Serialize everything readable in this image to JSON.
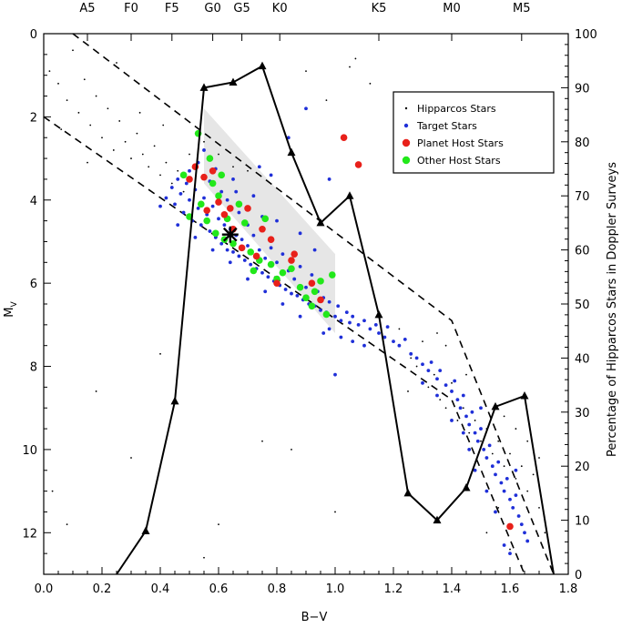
{
  "chart_data": {
    "type": "scatter",
    "xlabel": "B−V",
    "ylabel": "M",
    "ylabel_sub": "V",
    "y2label": "Percentage of Hipparcos Stars in Doppler Surveys",
    "xlim": [
      0.0,
      1.8
    ],
    "ylim": [
      13.0,
      0.0
    ],
    "y2lim": [
      0,
      100
    ],
    "x_ticks": [
      "0.0",
      "0.2",
      "0.4",
      "0.6",
      "0.8",
      "1.0",
      "1.2",
      "1.4",
      "1.6",
      "1.8"
    ],
    "y_ticks": [
      "0",
      "2",
      "4",
      "6",
      "8",
      "10",
      "12"
    ],
    "y2_ticks": [
      "0",
      "10",
      "20",
      "30",
      "40",
      "50",
      "60",
      "70",
      "80",
      "90",
      "100"
    ],
    "spectral_types": [
      {
        "label": "A5",
        "bv": 0.15
      },
      {
        "label": "F0",
        "bv": 0.3
      },
      {
        "label": "F5",
        "bv": 0.44
      },
      {
        "label": "G0",
        "bv": 0.58
      },
      {
        "label": "G5",
        "bv": 0.68
      },
      {
        "label": "K0",
        "bv": 0.81
      },
      {
        "label": "K5",
        "bv": 1.15
      },
      {
        "label": "M0",
        "bv": 1.4
      },
      {
        "label": "M5",
        "bv": 1.64
      }
    ],
    "legend": {
      "placement": "top-right",
      "entries": [
        {
          "label": "Hipparcos Stars",
          "color": "#000000",
          "marker": "dot"
        },
        {
          "label": "Target Stars",
          "color": "#1f2fd8",
          "marker": "small-circle"
        },
        {
          "label": "Planet Host Stars",
          "color": "#e8201a",
          "marker": "circle"
        },
        {
          "label": "Other Host Stars",
          "color": "#22e81a",
          "marker": "circle"
        }
      ]
    },
    "percentage_series": {
      "name": "Percentage of Hipparcos Stars in Doppler Surveys",
      "marker": "triangle",
      "points": [
        [
          0.25,
          0
        ],
        [
          0.35,
          8
        ],
        [
          0.45,
          32
        ],
        [
          0.55,
          90
        ],
        [
          0.65,
          91
        ],
        [
          0.75,
          94
        ],
        [
          0.85,
          78
        ],
        [
          0.95,
          65
        ],
        [
          1.05,
          70
        ],
        [
          1.15,
          48
        ],
        [
          1.25,
          15
        ],
        [
          1.35,
          10
        ],
        [
          1.45,
          16
        ],
        [
          1.55,
          31
        ],
        [
          1.65,
          33
        ],
        [
          1.75,
          0
        ]
      ]
    },
    "main_sequence_band": {
      "upper": [
        [
          0.1,
          0.0
        ],
        [
          1.4,
          6.9
        ],
        [
          1.75,
          13.0
        ]
      ],
      "lower": [
        [
          0.0,
          2.0
        ],
        [
          1.4,
          8.8
        ],
        [
          1.65,
          13.0
        ]
      ]
    },
    "shaded_region": {
      "color": "#e6e6e6",
      "points": [
        [
          0.55,
          1.8
        ],
        [
          1.0,
          5.3
        ],
        [
          1.0,
          7.2
        ],
        [
          0.55,
          3.6
        ]
      ]
    },
    "sun": {
      "bv": 0.64,
      "mv": 4.83,
      "marker": "star"
    },
    "planet_hosts": [
      [
        0.5,
        3.5
      ],
      [
        0.52,
        3.2
      ],
      [
        0.55,
        3.45
      ],
      [
        0.56,
        4.25
      ],
      [
        0.58,
        3.3
      ],
      [
        0.6,
        4.05
      ],
      [
        0.62,
        4.35
      ],
      [
        0.64,
        4.2
      ],
      [
        0.65,
        4.7
      ],
      [
        0.68,
        5.15
      ],
      [
        0.7,
        4.2
      ],
      [
        0.73,
        5.35
      ],
      [
        0.75,
        4.7
      ],
      [
        0.78,
        4.95
      ],
      [
        0.8,
        6.0
      ],
      [
        0.85,
        5.45
      ],
      [
        0.86,
        5.3
      ],
      [
        0.92,
        6.0
      ],
      [
        0.95,
        6.4
      ],
      [
        1.03,
        2.5
      ],
      [
        1.08,
        3.15
      ],
      [
        1.6,
        11.85
      ]
    ],
    "other_hosts": [
      [
        0.48,
        3.4
      ],
      [
        0.5,
        4.4
      ],
      [
        0.53,
        2.4
      ],
      [
        0.54,
        4.1
      ],
      [
        0.56,
        4.5
      ],
      [
        0.57,
        3.0
      ],
      [
        0.58,
        3.6
      ],
      [
        0.59,
        4.8
      ],
      [
        0.6,
        3.9
      ],
      [
        0.61,
        3.4
      ],
      [
        0.62,
        4.95
      ],
      [
        0.63,
        4.45
      ],
      [
        0.65,
        5.05
      ],
      [
        0.67,
        4.1
      ],
      [
        0.69,
        4.55
      ],
      [
        0.71,
        5.25
      ],
      [
        0.74,
        5.45
      ],
      [
        0.76,
        4.45
      ],
      [
        0.78,
        5.55
      ],
      [
        0.8,
        5.9
      ],
      [
        0.82,
        5.75
      ],
      [
        0.85,
        5.65
      ],
      [
        0.88,
        6.1
      ],
      [
        0.9,
        6.35
      ],
      [
        0.92,
        6.55
      ],
      [
        0.95,
        5.95
      ],
      [
        0.97,
        6.75
      ],
      [
        0.99,
        5.8
      ],
      [
        0.93,
        6.2
      ],
      [
        0.72,
        5.7
      ]
    ],
    "target_stars": [
      [
        0.4,
        4.15
      ],
      [
        0.42,
        3.95
      ],
      [
        0.44,
        3.7
      ],
      [
        0.45,
        4.1
      ],
      [
        0.46,
        3.5
      ],
      [
        0.47,
        3.85
      ],
      [
        0.48,
        4.3
      ],
      [
        0.49,
        3.6
      ],
      [
        0.5,
        4.0
      ],
      [
        0.5,
        3.3
      ],
      [
        0.51,
        4.5
      ],
      [
        0.52,
        3.75
      ],
      [
        0.53,
        4.2
      ],
      [
        0.53,
        3.1
      ],
      [
        0.54,
        4.6
      ],
      [
        0.55,
        3.95
      ],
      [
        0.55,
        2.8
      ],
      [
        0.56,
        4.35
      ],
      [
        0.57,
        4.75
      ],
      [
        0.57,
        3.55
      ],
      [
        0.58,
        4.15
      ],
      [
        0.59,
        4.9
      ],
      [
        0.59,
        3.25
      ],
      [
        0.6,
        4.45
      ],
      [
        0.61,
        5.05
      ],
      [
        0.61,
        3.8
      ],
      [
        0.62,
        4.6
      ],
      [
        0.63,
        5.2
      ],
      [
        0.63,
        4.0
      ],
      [
        0.64,
        4.7
      ],
      [
        0.65,
        5.25
      ],
      [
        0.65,
        3.5
      ],
      [
        0.66,
        4.85
      ],
      [
        0.67,
        5.35
      ],
      [
        0.67,
        4.3
      ],
      [
        0.68,
        4.95
      ],
      [
        0.69,
        5.45
      ],
      [
        0.7,
        4.6
      ],
      [
        0.7,
        5.1
      ],
      [
        0.71,
        5.55
      ],
      [
        0.72,
        4.85
      ],
      [
        0.72,
        3.9
      ],
      [
        0.73,
        5.65
      ],
      [
        0.74,
        5.2
      ],
      [
        0.75,
        5.75
      ],
      [
        0.75,
        4.4
      ],
      [
        0.76,
        5.4
      ],
      [
        0.77,
        5.85
      ],
      [
        0.78,
        5.15
      ],
      [
        0.78,
        3.4
      ],
      [
        0.79,
        5.95
      ],
      [
        0.8,
        5.5
      ],
      [
        0.81,
        6.05
      ],
      [
        0.82,
        5.3
      ],
      [
        0.83,
        6.15
      ],
      [
        0.84,
        5.7
      ],
      [
        0.84,
        2.5
      ],
      [
        0.85,
        6.25
      ],
      [
        0.86,
        5.9
      ],
      [
        0.87,
        6.3
      ],
      [
        0.88,
        5.6
      ],
      [
        0.89,
        6.4
      ],
      [
        0.9,
        6.1
      ],
      [
        0.9,
        1.8
      ],
      [
        0.91,
        6.5
      ],
      [
        0.92,
        5.8
      ],
      [
        0.93,
        6.55
      ],
      [
        0.94,
        6.2
      ],
      [
        0.95,
        6.65
      ],
      [
        0.96,
        6.35
      ],
      [
        0.97,
        6.7
      ],
      [
        0.98,
        6.45
      ],
      [
        1.0,
        6.8
      ],
      [
        1.01,
        6.55
      ],
      [
        1.02,
        6.9
      ],
      [
        1.04,
        6.7
      ],
      [
        1.05,
        6.95
      ],
      [
        1.06,
        6.8
      ],
      [
        1.08,
        7.0
      ],
      [
        1.1,
        6.9
      ],
      [
        1.12,
        7.1
      ],
      [
        1.14,
        7.0
      ],
      [
        1.15,
        7.2
      ],
      [
        1.17,
        7.3
      ],
      [
        1.18,
        7.05
      ],
      [
        1.2,
        7.4
      ],
      [
        1.22,
        7.5
      ],
      [
        1.24,
        7.35
      ],
      [
        1.26,
        7.7
      ],
      [
        1.28,
        7.8
      ],
      [
        1.3,
        7.95
      ],
      [
        1.32,
        8.1
      ],
      [
        1.33,
        7.9
      ],
      [
        1.35,
        8.3
      ],
      [
        1.36,
        8.1
      ],
      [
        1.38,
        8.45
      ],
      [
        1.4,
        8.6
      ],
      [
        1.41,
        8.35
      ],
      [
        1.42,
        8.8
      ],
      [
        1.43,
        9.0
      ],
      [
        1.44,
        8.7
      ],
      [
        1.45,
        9.2
      ],
      [
        1.46,
        9.4
      ],
      [
        1.47,
        9.1
      ],
      [
        1.48,
        9.6
      ],
      [
        1.49,
        9.8
      ],
      [
        1.5,
        9.5
      ],
      [
        1.51,
        10.0
      ],
      [
        1.52,
        10.2
      ],
      [
        1.53,
        9.9
      ],
      [
        1.54,
        10.4
      ],
      [
        1.55,
        10.6
      ],
      [
        1.56,
        10.3
      ],
      [
        1.57,
        10.8
      ],
      [
        1.58,
        11.0
      ],
      [
        1.59,
        10.7
      ],
      [
        1.6,
        11.2
      ],
      [
        1.61,
        11.4
      ],
      [
        1.62,
        11.1
      ],
      [
        1.63,
        11.6
      ],
      [
        1.64,
        11.8
      ],
      [
        1.65,
        12.0
      ],
      [
        1.66,
        12.2
      ],
      [
        1.55,
        11.5
      ],
      [
        1.58,
        12.3
      ],
      [
        1.6,
        12.5
      ],
      [
        1.52,
        11.0
      ],
      [
        1.48,
        10.5
      ],
      [
        1.46,
        10.0
      ],
      [
        1.44,
        9.6
      ],
      [
        1.62,
        10.5
      ],
      [
        1.5,
        9.0
      ],
      [
        1.4,
        9.3
      ],
      [
        1.35,
        8.7
      ],
      [
        1.3,
        8.4
      ],
      [
        0.98,
        7.1
      ],
      [
        0.96,
        7.2
      ],
      [
        1.02,
        7.3
      ],
      [
        1.06,
        7.4
      ],
      [
        1.1,
        7.5
      ],
      [
        0.88,
        6.8
      ],
      [
        0.82,
        6.5
      ],
      [
        0.76,
        6.2
      ],
      [
        0.7,
        5.9
      ],
      [
        0.64,
        5.5
      ],
      [
        0.58,
        5.2
      ],
      [
        0.52,
        4.9
      ],
      [
        0.46,
        4.6
      ],
      [
        0.98,
        3.5
      ],
      [
        1.0,
        8.2
      ],
      [
        0.93,
        5.2
      ],
      [
        0.88,
        4.8
      ],
      [
        0.8,
        4.5
      ],
      [
        0.74,
        3.2
      ],
      [
        0.66,
        3.8
      ]
    ],
    "hipparcos_stars": [
      [
        0.02,
        0.9
      ],
      [
        0.05,
        1.2
      ],
      [
        0.08,
        1.6
      ],
      [
        0.1,
        0.4
      ],
      [
        0.12,
        1.9
      ],
      [
        0.14,
        1.1
      ],
      [
        0.16,
        2.2
      ],
      [
        0.18,
        1.5
      ],
      [
        0.2,
        2.5
      ],
      [
        0.22,
        1.8
      ],
      [
        0.24,
        2.8
      ],
      [
        0.26,
        2.1
      ],
      [
        0.28,
        2.6
      ],
      [
        0.3,
        3.0
      ],
      [
        0.32,
        2.4
      ],
      [
        0.34,
        2.9
      ],
      [
        0.36,
        3.2
      ],
      [
        0.38,
        2.7
      ],
      [
        0.4,
        3.4
      ],
      [
        0.42,
        3.1
      ],
      [
        0.44,
        3.6
      ],
      [
        0.46,
        3.3
      ],
      [
        0.48,
        3.8
      ],
      [
        0.06,
        2.3
      ],
      [
        0.15,
        3.1
      ],
      [
        0.25,
        0.7
      ],
      [
        0.33,
        1.9
      ],
      [
        0.41,
        2.2
      ],
      [
        0.03,
        11.0
      ],
      [
        0.08,
        11.8
      ],
      [
        0.18,
        8.6
      ],
      [
        0.4,
        7.7
      ],
      [
        0.3,
        10.2
      ],
      [
        0.6,
        11.8
      ],
      [
        0.55,
        12.6
      ],
      [
        0.85,
        10.0
      ],
      [
        0.75,
        9.8
      ],
      [
        1.0,
        11.5
      ],
      [
        1.07,
        0.6
      ],
      [
        1.05,
        0.8
      ],
      [
        1.12,
        1.2
      ],
      [
        0.97,
        1.6
      ],
      [
        0.9,
        0.9
      ],
      [
        1.25,
        8.6
      ],
      [
        1.28,
        8.0
      ],
      [
        1.32,
        8.5
      ],
      [
        1.34,
        8.2
      ],
      [
        1.36,
        8.8
      ],
      [
        1.38,
        9.0
      ],
      [
        1.4,
        8.4
      ],
      [
        1.42,
        9.3
      ],
      [
        1.44,
        9.0
      ],
      [
        1.46,
        9.6
      ],
      [
        1.48,
        9.3
      ],
      [
        1.5,
        9.8
      ],
      [
        1.52,
        9.5
      ],
      [
        1.54,
        10.1
      ],
      [
        1.56,
        9.8
      ],
      [
        1.58,
        10.4
      ],
      [
        1.6,
        10.1
      ],
      [
        1.62,
        10.7
      ],
      [
        1.64,
        10.4
      ],
      [
        1.66,
        11.0
      ],
      [
        1.68,
        10.6
      ],
      [
        1.7,
        11.4
      ],
      [
        1.72,
        12.0
      ],
      [
        1.56,
        11.4
      ],
      [
        1.52,
        12.0
      ],
      [
        1.6,
        12.4
      ],
      [
        1.64,
        12.8
      ],
      [
        1.38,
        7.5
      ],
      [
        1.35,
        7.2
      ],
      [
        1.3,
        7.4
      ],
      [
        1.26,
        7.8
      ],
      [
        1.22,
        7.1
      ],
      [
        1.58,
        9.2
      ],
      [
        1.62,
        9.5
      ],
      [
        1.66,
        9.8
      ],
      [
        1.7,
        10.2
      ],
      [
        1.45,
        8.2
      ],
      [
        0.55,
        2.6
      ],
      [
        0.6,
        2.9
      ],
      [
        0.65,
        3.2
      ],
      [
        0.7,
        3.3
      ],
      [
        0.5,
        2.9
      ]
    ]
  }
}
